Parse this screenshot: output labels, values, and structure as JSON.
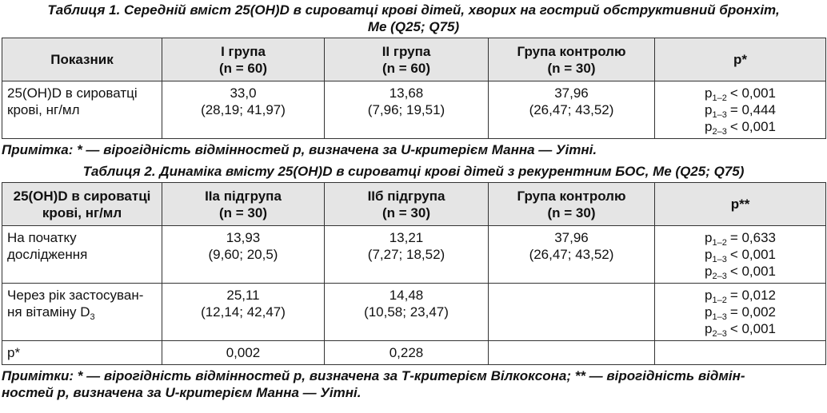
{
  "tables": [
    {
      "title": [
        "Таблиця 1. Середній вміст 25(OH)D в сироватці крові дітей, хворих на гострий обструктивний бронхіт,",
        "Me (Q25; Q75)"
      ],
      "header": [
        [
          "Показник"
        ],
        [
          "I група",
          "(n = 60)"
        ],
        [
          "II група",
          "(n = 60)"
        ],
        [
          "Група контролю",
          "(n = 30)"
        ],
        [
          "p*"
        ]
      ],
      "rows": [
        [
          [
            "25(OH)D в сироватці",
            "крові, нг/мл"
          ],
          [
            "33,0",
            "(28,19; 41,97)"
          ],
          [
            "13,68",
            "(7,96; 19,51)"
          ],
          [
            "37,96",
            "(26,47; 43,52)"
          ],
          [
            {
              "text": "p",
              "sub": "1–2",
              "after": "< 0,001"
            },
            {
              "text": "p",
              "sub": "1–3",
              "after": "= 0,444"
            },
            {
              "text": "p",
              "sub": "2–3",
              "after": "< 0,001"
            }
          ]
        ]
      ],
      "note": [
        "Примітка: * — вірогідність відмінностей р, визначена за U-критерієм Манна — Уітні."
      ]
    },
    {
      "title": [
        "Таблиця 2. Динаміка вмісту 25(OH)D в сироватці крові дітей з рекурентним БОС, Me (Q25; Q75)"
      ],
      "header": [
        [
          "25(OH)D в сироватці",
          "крові, нг/мл"
        ],
        [
          "IIа підгрупа",
          "(n = 30)"
        ],
        [
          "IIб підгрупа",
          "(n = 30)"
        ],
        [
          "Група контролю",
          "(n = 30)"
        ],
        [
          "p**"
        ]
      ],
      "rows": [
        [
          [
            "На початку",
            "дослідження"
          ],
          [
            "13,93",
            "(9,60; 20,5)"
          ],
          [
            "13,21",
            "(7,27; 18,52)"
          ],
          [
            "37,96",
            "(26,47; 43,52)"
          ],
          [
            {
              "text": "p",
              "sub": "1–2",
              "after": "= 0,633"
            },
            {
              "text": "p",
              "sub": "1–3",
              "after": "< 0,001"
            },
            {
              "text": "p",
              "sub": "2–3",
              "after": "< 0,001"
            }
          ]
        ],
        [
          [
            "Через рік застосуван-",
            {
              "text": "ня вітаміну D",
              "sub": "3"
            }
          ],
          [
            "25,11",
            "(12,14; 42,47)"
          ],
          [
            "14,48",
            "(10,58; 23,47)"
          ],
          [],
          [
            {
              "text": "p",
              "sub": "1–2",
              "after": "= 0,012"
            },
            {
              "text": "p",
              "sub": "1–3",
              "after": "= 0,002"
            },
            {
              "text": "p",
              "sub": "2–3",
              "after": "< 0,001"
            }
          ]
        ],
        [
          [
            "р*"
          ],
          [
            "0,002"
          ],
          [
            "0,228"
          ],
          [],
          []
        ]
      ],
      "note": [
        "Примітки: * — вірогідність відмінностей р, визначена за Т-критерієм Вілкоксона; ** — вірогідність відмін-",
        "ностей р, визначена за U-критерієм Манна — Уітні."
      ]
    }
  ]
}
